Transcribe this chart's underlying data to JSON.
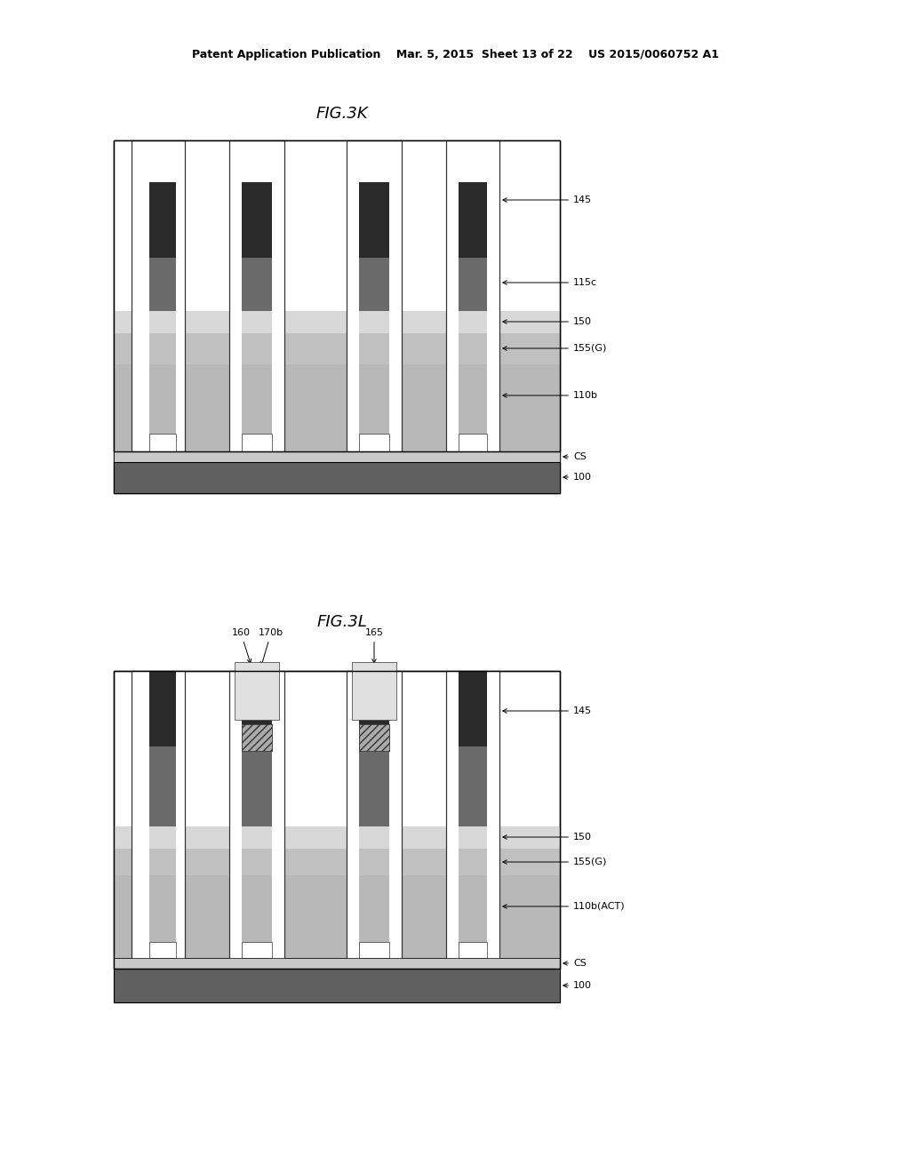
{
  "bg_color": "#ffffff",
  "header_text": "Patent Application Publication    Mar. 5, 2015  Sheet 13 of 22    US 2015/0060752 A1",
  "fig1_title": "FIG.3K",
  "fig2_title": "FIG.3L"
}
